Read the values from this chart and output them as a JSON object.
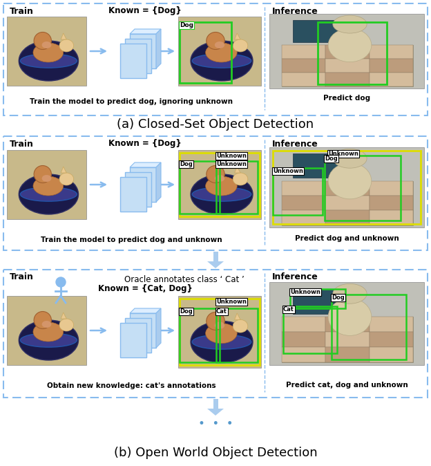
{
  "title_a": "(a) Closed-Set Object Detection",
  "title_b": "(b) Open World Object Detection",
  "bg_color": "#ffffff",
  "panel_border_color": "#88bbee",
  "arrow_color": "#88bbee",
  "green_box": "#22cc22",
  "yellow_box": "#dddd00",
  "panel1_caption_left": "Train the model to predict dog, ignoring unknown",
  "panel1_caption_right": "Predict dog",
  "panel2_caption_left": "Train the model to predict dog and unknown",
  "panel2_caption_right": "Predict dog and unknown",
  "panel3_caption_left": "Obtain new knowledge: cat's annotations",
  "panel3_caption_right": "Predict cat, dog and unknown",
  "known_dog": "Known = {Dog}",
  "known_catdog": "Known = {Cat, Dog}",
  "train_label": "Train",
  "inference_label": "Inference",
  "oracle_text": "Oracle annotates class ‘ Cat ’",
  "dots": "•  •  •",
  "nn_face": "#c5dff5",
  "nn_edge": "#88bbee",
  "nn_top": "#ddeeff",
  "nn_side": "#aaccee"
}
